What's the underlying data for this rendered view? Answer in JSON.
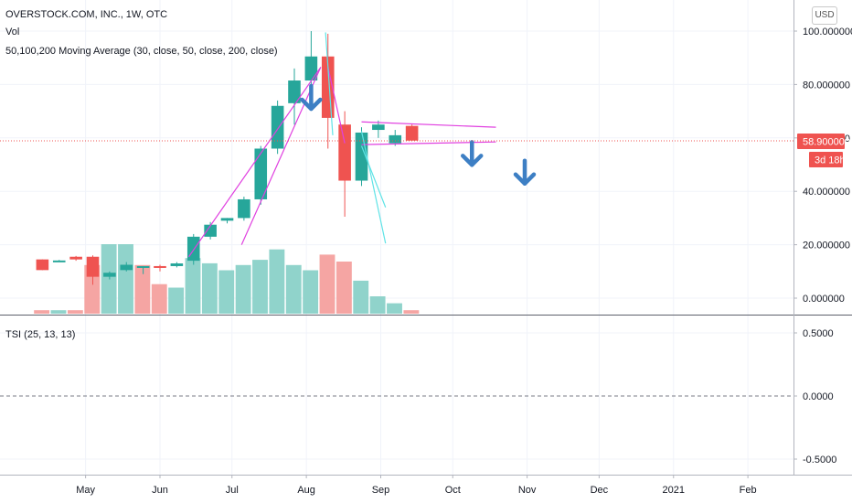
{
  "header": {
    "symbol_title": "OVERSTOCK.COM, INC., 1W, OTC",
    "vol_label": "Vol",
    "ma_label": "50,100,200 Moving Average (30, close, 50, close, 200, close)",
    "currency_button": "USD"
  },
  "price_panel": {
    "last_price_label": "58.900000",
    "countdown_label": "3d 18h"
  },
  "tsi_panel": {
    "label": "TSI (25, 13, 13)"
  },
  "colors": {
    "up": "#26a69a",
    "down": "#ef5350",
    "vol_up": "#90d3cb",
    "vol_down": "#f5a5a3",
    "trendline": "#e040e0",
    "cyan_line": "#5fe3e6",
    "arrow": "#3d7fc4",
    "grid": "#f0f3fa",
    "last_price": "#ef5350"
  },
  "chart_data": [
    {
      "type": "candlestick",
      "title": "OVERSTOCK.COM, INC., 1W, OTC",
      "y_axis": {
        "ticks": [
          0,
          20,
          40,
          60,
          80,
          100
        ],
        "tick_labels": [
          "0.000000",
          "20.000000",
          "40.000000",
          "60.000000",
          "80.000000",
          "100.000000"
        ],
        "range": [
          -5,
          108
        ]
      },
      "x_axis": {
        "tick_labels": [
          "May",
          "Jun",
          "Jul",
          "Aug",
          "Sep",
          "Oct",
          "Nov",
          "Dec",
          "2021",
          "Feb"
        ],
        "tick_dates": [
          "2020-05-01",
          "2020-06-01",
          "2020-07-01",
          "2020-08-01",
          "2020-09-01",
          "2020-10-01",
          "2020-11-01",
          "2020-12-01",
          "2021-01-01",
          "2021-02-01"
        ],
        "range": [
          "2020-04-06",
          "2021-02-20"
        ]
      },
      "grid": true,
      "last_price": 58.9,
      "candles": [
        {
          "date": "2020-04-13",
          "open": 14.5,
          "high": 14.5,
          "low": 10.5,
          "close": 10.5
        },
        {
          "date": "2020-04-20",
          "open": 14.0,
          "high": 14.3,
          "low": 13.8,
          "close": 14.1
        },
        {
          "date": "2020-04-27",
          "open": 15.5,
          "high": 15.8,
          "low": 14.0,
          "close": 14.5
        },
        {
          "date": "2020-05-04",
          "open": 15.5,
          "high": 16.0,
          "low": 5.0,
          "close": 8.0
        },
        {
          "date": "2020-05-11",
          "open": 8.0,
          "high": 10.0,
          "low": 7.0,
          "close": 9.5
        },
        {
          "date": "2020-05-18",
          "open": 10.5,
          "high": 13.5,
          "low": 10.0,
          "close": 12.5
        },
        {
          "date": "2020-05-25",
          "open": 11.5,
          "high": 12.0,
          "low": 9.0,
          "close": 12.0
        },
        {
          "date": "2020-06-01",
          "open": 12.0,
          "high": 12.5,
          "low": 10.0,
          "close": 11.5
        },
        {
          "date": "2020-06-08",
          "open": 12.0,
          "high": 13.5,
          "low": 11.5,
          "close": 13.0
        },
        {
          "date": "2020-06-15",
          "open": 14.0,
          "high": 24.0,
          "low": 12.5,
          "close": 23.0
        },
        {
          "date": "2020-06-22",
          "open": 23.0,
          "high": 28.5,
          "low": 22.0,
          "close": 27.5
        },
        {
          "date": "2020-06-29",
          "open": 29.0,
          "high": 30.0,
          "low": 28.0,
          "close": 30.0
        },
        {
          "date": "2020-07-06",
          "open": 30.0,
          "high": 38.0,
          "low": 29.0,
          "close": 37.0
        },
        {
          "date": "2020-07-13",
          "open": 37.0,
          "high": 57.0,
          "low": 35.0,
          "close": 56.0
        },
        {
          "date": "2020-07-20",
          "open": 56.0,
          "high": 74.0,
          "low": 54.0,
          "close": 72.0
        },
        {
          "date": "2020-07-27",
          "open": 73.0,
          "high": 86.0,
          "low": 65.0,
          "close": 81.5
        },
        {
          "date": "2020-08-03",
          "open": 81.5,
          "high": 100.0,
          "low": 73.0,
          "close": 90.5
        },
        {
          "date": "2020-08-10",
          "open": 90.5,
          "high": 99.0,
          "low": 56.0,
          "close": 67.5
        },
        {
          "date": "2020-08-17",
          "open": 65.0,
          "high": 70.0,
          "low": 30.5,
          "close": 44.0
        },
        {
          "date": "2020-08-24",
          "open": 44.0,
          "high": 64.0,
          "low": 42.0,
          "close": 62.0
        },
        {
          "date": "2020-08-31",
          "open": 63.0,
          "high": 66.5,
          "low": 60.0,
          "close": 65.0
        },
        {
          "date": "2020-09-07",
          "open": 58.0,
          "high": 63.0,
          "low": 57.0,
          "close": 61.0
        },
        {
          "date": "2020-09-14",
          "open": 64.5,
          "high": 65.0,
          "low": 59.0,
          "close": 59.0
        }
      ],
      "volume_bars": [
        {
          "date": "2020-04-13",
          "volume": 1.0,
          "up": false
        },
        {
          "date": "2020-04-20",
          "volume": 1.0,
          "up": true
        },
        {
          "date": "2020-04-27",
          "volume": 1.0,
          "up": false
        },
        {
          "date": "2020-05-04",
          "volume": 14.0,
          "up": false
        },
        {
          "date": "2020-05-11",
          "volume": 20.0,
          "up": true
        },
        {
          "date": "2020-05-18",
          "volume": 20.0,
          "up": true
        },
        {
          "date": "2020-05-25",
          "volume": 14.0,
          "up": false
        },
        {
          "date": "2020-06-01",
          "volume": 8.5,
          "up": false
        },
        {
          "date": "2020-06-08",
          "volume": 7.5,
          "up": true
        },
        {
          "date": "2020-06-15",
          "volume": 16.0,
          "up": true
        },
        {
          "date": "2020-06-22",
          "volume": 14.5,
          "up": true
        },
        {
          "date": "2020-06-29",
          "volume": 12.5,
          "up": true
        },
        {
          "date": "2020-07-06",
          "volume": 14.0,
          "up": true
        },
        {
          "date": "2020-07-13",
          "volume": 15.5,
          "up": true
        },
        {
          "date": "2020-07-20",
          "volume": 18.5,
          "up": true
        },
        {
          "date": "2020-07-27",
          "volume": 14.0,
          "up": true
        },
        {
          "date": "2020-08-03",
          "volume": 12.5,
          "up": true
        },
        {
          "date": "2020-08-10",
          "volume": 17.0,
          "up": false
        },
        {
          "date": "2020-08-17",
          "volume": 15.0,
          "up": false
        },
        {
          "date": "2020-08-24",
          "volume": 9.5,
          "up": true
        },
        {
          "date": "2020-08-31",
          "volume": 5.0,
          "up": true
        },
        {
          "date": "2020-09-07",
          "volume": 3.0,
          "up": true
        },
        {
          "date": "2020-09-14",
          "volume": 1.0,
          "up": false
        }
      ],
      "drawings": {
        "magenta_trendlines": [
          [
            {
              "date": "2020-06-13",
              "price": 15.5
            },
            {
              "date": "2020-08-07",
              "price": 86.5
            }
          ],
          [
            {
              "date": "2020-07-05",
              "price": 20.0
            },
            {
              "date": "2020-08-07",
              "price": 86.5
            }
          ],
          [
            {
              "date": "2020-08-10",
              "price": 86.5
            },
            {
              "date": "2020-08-17",
              "price": 58.0
            }
          ],
          [
            {
              "date": "2020-08-24",
              "price": 66.0
            },
            {
              "date": "2020-10-19",
              "price": 64.0
            }
          ],
          [
            {
              "date": "2020-08-24",
              "price": 57.5
            },
            {
              "date": "2020-10-19",
              "price": 58.5
            }
          ]
        ],
        "cyan_trendlines": [
          [
            {
              "date": "2020-08-09",
              "price": 99.5
            },
            {
              "date": "2020-08-12",
              "price": 61.0
            }
          ],
          [
            {
              "date": "2020-08-24",
              "price": 62.5
            },
            {
              "date": "2020-09-03",
              "price": 20.5
            }
          ],
          [
            {
              "date": "2020-08-24",
              "price": 57.0
            },
            {
              "date": "2020-09-03",
              "price": 34.0
            }
          ]
        ],
        "down_arrows": [
          {
            "date": "2020-08-03",
            "price": 75.0
          },
          {
            "date": "2020-10-09",
            "price": 54.0
          },
          {
            "date": "2020-10-31",
            "price": 47.0
          }
        ]
      }
    },
    {
      "type": "line",
      "title": "TSI (25, 13, 13)",
      "y_axis": {
        "ticks": [
          0.5,
          0,
          -0.5
        ],
        "tick_labels": [
          "0.5000",
          "0.0000",
          "-0.5000"
        ],
        "range": [
          -0.62,
          0.62
        ]
      },
      "zero_line": true,
      "series": []
    }
  ]
}
